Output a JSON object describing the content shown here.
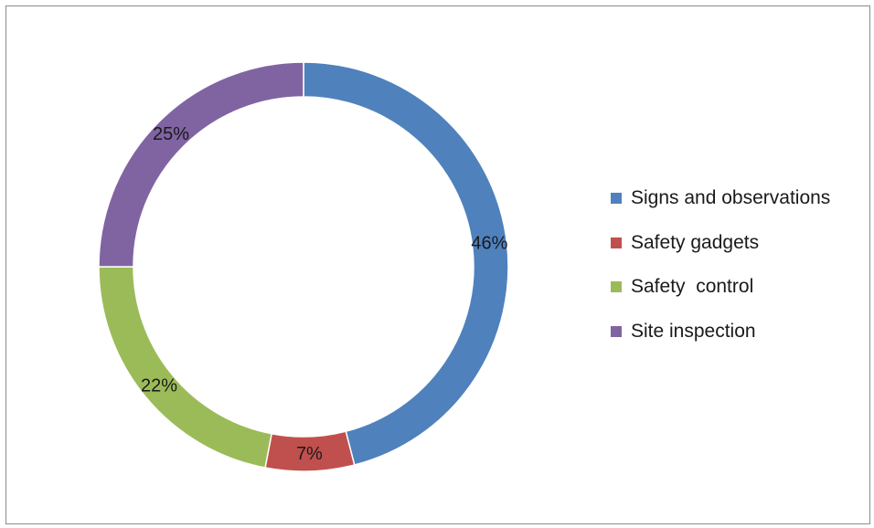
{
  "chart_data": {
    "type": "pie",
    "variant": "donut",
    "categories": [
      "Signs and observations",
      "Safety gadgets",
      "Safety  control",
      "Site inspection"
    ],
    "values": [
      46,
      7,
      22,
      25
    ],
    "data_labels": [
      "46%",
      "7%",
      "22%",
      "25%"
    ],
    "colors": [
      "#4f81bd",
      "#c0504d",
      "#9bbb59",
      "#8064a2"
    ],
    "legend_position": "right",
    "title": ""
  }
}
